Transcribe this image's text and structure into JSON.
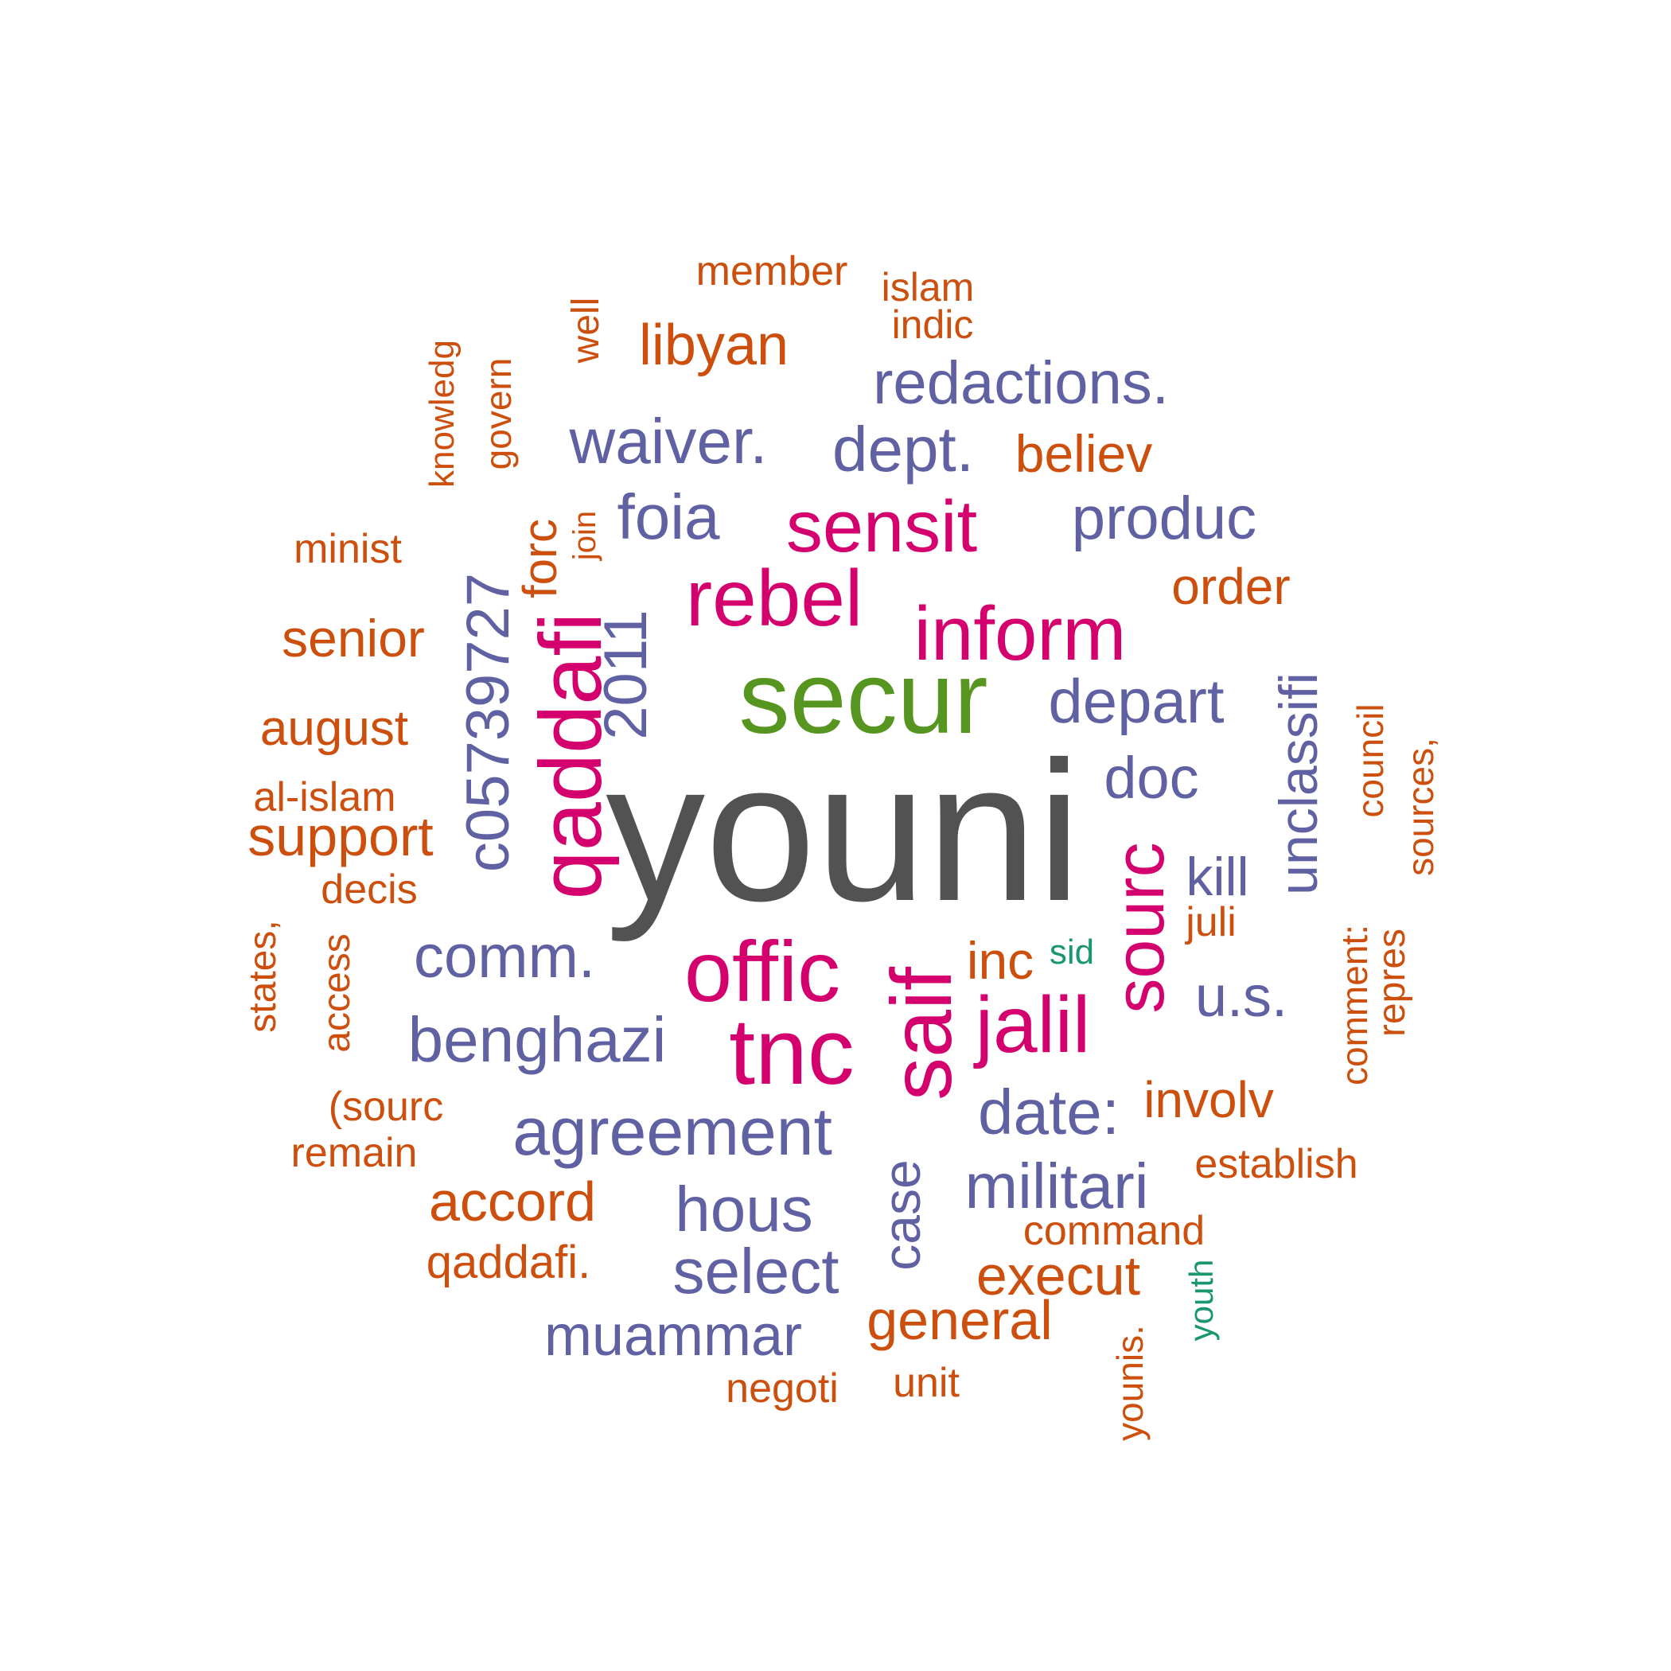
{
  "colors": {
    "dark": "#525252",
    "green": "#56951f",
    "magenta": "#d4006e",
    "purple": "#6061a3",
    "orange": "#cd4f0e",
    "teal": "#1a9670"
  },
  "words": [
    {
      "text": "youni",
      "color": "dark"
    },
    {
      "text": "secur",
      "color": "green"
    },
    {
      "text": "sensit",
      "color": "magenta"
    },
    {
      "text": "rebel",
      "color": "magenta"
    },
    {
      "text": "inform",
      "color": "magenta"
    },
    {
      "text": "qaddafi",
      "color": "magenta"
    },
    {
      "text": "offic",
      "color": "magenta"
    },
    {
      "text": "tnc",
      "color": "magenta"
    },
    {
      "text": "saif",
      "color": "magenta"
    },
    {
      "text": "jalil",
      "color": "magenta"
    },
    {
      "text": "sourc",
      "color": "magenta"
    },
    {
      "text": "redactions.",
      "color": "purple"
    },
    {
      "text": "waiver.",
      "color": "purple"
    },
    {
      "text": "dept.",
      "color": "purple"
    },
    {
      "text": "foia",
      "color": "purple"
    },
    {
      "text": "produc",
      "color": "purple"
    },
    {
      "text": "c05739727",
      "color": "purple"
    },
    {
      "text": "2011",
      "color": "purple"
    },
    {
      "text": "depart",
      "color": "purple"
    },
    {
      "text": "unclassifi",
      "color": "purple"
    },
    {
      "text": "doc",
      "color": "purple"
    },
    {
      "text": "kill",
      "color": "purple"
    },
    {
      "text": "comm.",
      "color": "purple"
    },
    {
      "text": "u.s.",
      "color": "purple"
    },
    {
      "text": "benghazi",
      "color": "purple"
    },
    {
      "text": "date:",
      "color": "purple"
    },
    {
      "text": "agreement",
      "color": "purple"
    },
    {
      "text": "militari",
      "color": "purple"
    },
    {
      "text": "hous",
      "color": "purple"
    },
    {
      "text": "case",
      "color": "purple"
    },
    {
      "text": "select",
      "color": "purple"
    },
    {
      "text": "muammar",
      "color": "purple"
    },
    {
      "text": "member",
      "color": "orange"
    },
    {
      "text": "islam",
      "color": "orange"
    },
    {
      "text": "indic",
      "color": "orange"
    },
    {
      "text": "well",
      "color": "orange"
    },
    {
      "text": "libyan",
      "color": "orange"
    },
    {
      "text": "knowledg",
      "color": "orange"
    },
    {
      "text": "govern",
      "color": "orange"
    },
    {
      "text": "believ",
      "color": "orange"
    },
    {
      "text": "forc",
      "color": "orange"
    },
    {
      "text": "join",
      "color": "orange"
    },
    {
      "text": "minist",
      "color": "orange"
    },
    {
      "text": "order",
      "color": "orange"
    },
    {
      "text": "senior",
      "color": "orange"
    },
    {
      "text": "august",
      "color": "orange"
    },
    {
      "text": "council",
      "color": "orange"
    },
    {
      "text": "sources,",
      "color": "orange"
    },
    {
      "text": "al-islam",
      "color": "orange"
    },
    {
      "text": "support",
      "color": "orange"
    },
    {
      "text": "decis",
      "color": "orange"
    },
    {
      "text": "juli",
      "color": "orange"
    },
    {
      "text": "states,",
      "color": "orange"
    },
    {
      "text": "access",
      "color": "orange"
    },
    {
      "text": "inc",
      "color": "orange"
    },
    {
      "text": "sid",
      "color": "teal"
    },
    {
      "text": "comment:",
      "color": "orange"
    },
    {
      "text": "repres",
      "color": "orange"
    },
    {
      "text": "(sourc",
      "color": "orange"
    },
    {
      "text": "involv",
      "color": "orange"
    },
    {
      "text": "remain",
      "color": "orange"
    },
    {
      "text": "establish",
      "color": "orange"
    },
    {
      "text": "accord",
      "color": "orange"
    },
    {
      "text": "command",
      "color": "orange"
    },
    {
      "text": "qaddafi.",
      "color": "orange"
    },
    {
      "text": "execut",
      "color": "orange"
    },
    {
      "text": "youth",
      "color": "teal"
    },
    {
      "text": "general",
      "color": "orange"
    },
    {
      "text": "younis.",
      "color": "orange"
    },
    {
      "text": "negoti",
      "color": "orange"
    },
    {
      "text": "unit",
      "color": "orange"
    }
  ]
}
